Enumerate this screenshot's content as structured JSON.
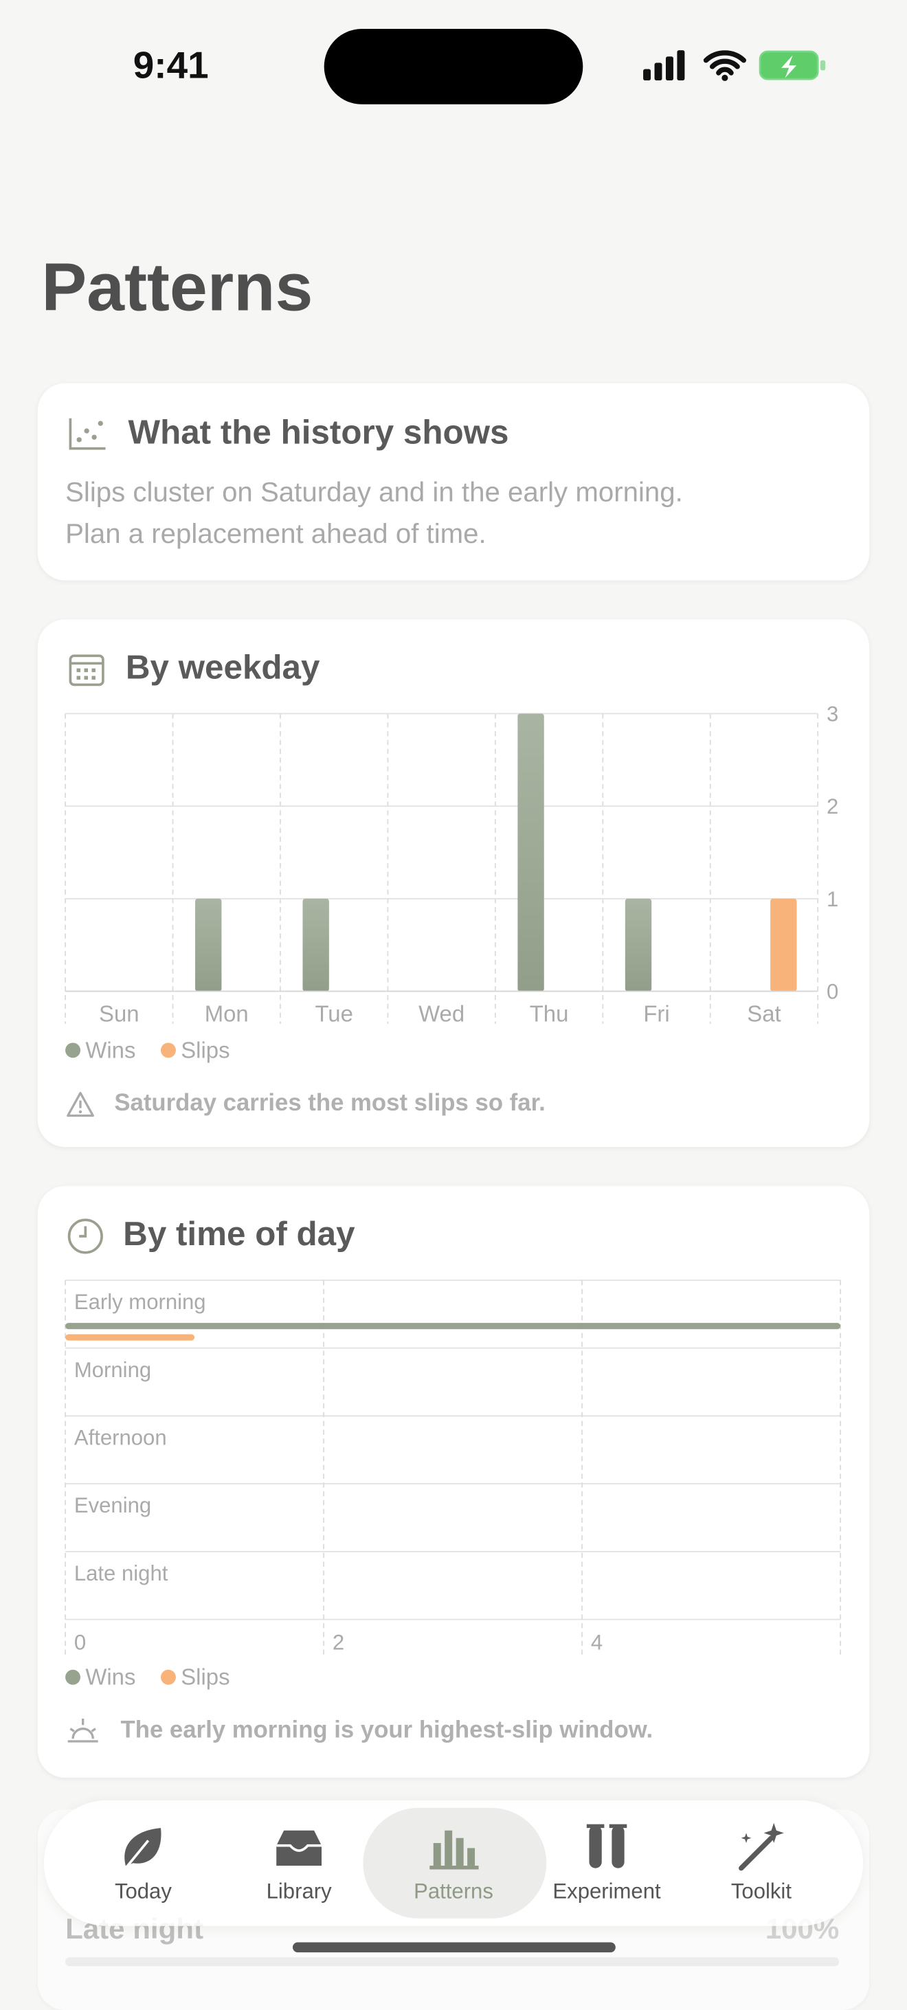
{
  "status": {
    "time": "9:41"
  },
  "title": "Patterns",
  "summary": {
    "heading": "What the history shows",
    "lines": [
      "Slips cluster on Saturday and in the early morning.",
      "Plan a replacement ahead of time."
    ]
  },
  "chart_data": [
    {
      "type": "bar",
      "title": "By weekday",
      "categories": [
        "Sun",
        "Mon",
        "Tue",
        "Wed",
        "Thu",
        "Fri",
        "Sat"
      ],
      "series": [
        {
          "name": "Wins",
          "color": "#97a38f",
          "values": [
            0,
            1,
            1,
            0,
            3,
            1,
            0
          ]
        },
        {
          "name": "Slips",
          "color": "#f7b37a",
          "values": [
            0,
            0,
            0,
            0,
            0,
            0,
            1
          ]
        }
      ],
      "ylim": [
        0,
        3
      ],
      "yticks": [
        0,
        1,
        2,
        3
      ],
      "grid": true,
      "note": "Saturday carries the most slips so far."
    },
    {
      "type": "hbar",
      "title": "By time of day",
      "categories": [
        "Early morning",
        "Morning",
        "Afternoon",
        "Evening",
        "Late night"
      ],
      "series": [
        {
          "name": "Wins",
          "color": "#97a38f",
          "values": [
            6,
            0,
            0,
            0,
            0
          ]
        },
        {
          "name": "Slips",
          "color": "#f7b37a",
          "values": [
            1,
            0,
            0,
            0,
            0
          ]
        }
      ],
      "xlim": [
        0,
        6
      ],
      "xticks": [
        0,
        2,
        4
      ],
      "grid": true,
      "note": "The early morning is your highest-slip window."
    }
  ],
  "behind": {
    "label": "Late night",
    "value": "100%"
  },
  "nav": {
    "items": [
      "Today",
      "Library",
      "Patterns",
      "Experiment",
      "Toolkit"
    ],
    "selected": 2
  }
}
